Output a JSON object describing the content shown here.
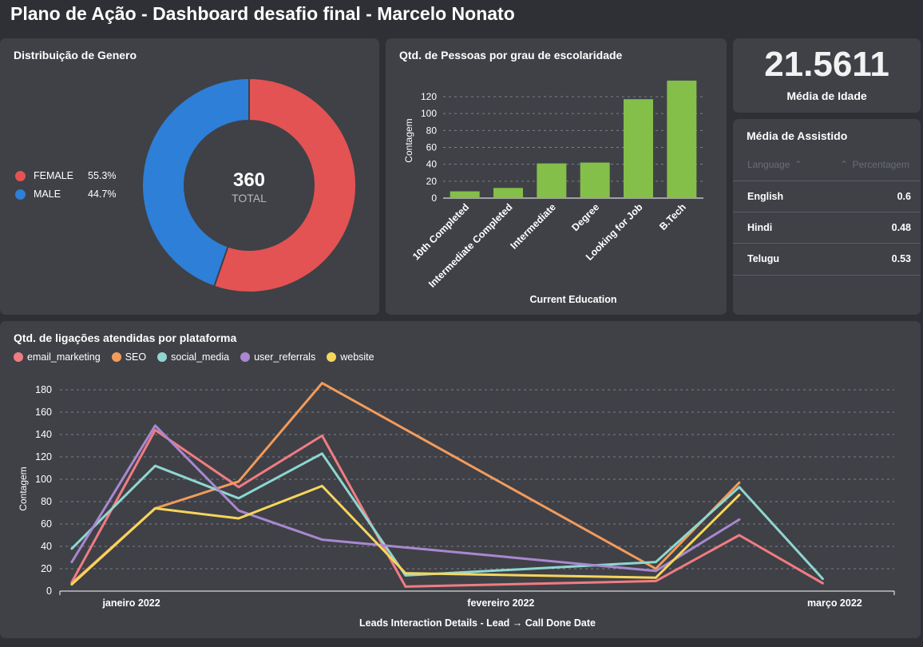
{
  "page_title": "Plano de Ação - Dashboard desafio final - Marcelo Nonato",
  "gender_card": {
    "title": "Distribuição de Genero",
    "total_value": "360",
    "total_label": "TOTAL",
    "legend": [
      {
        "label": "FEMALE",
        "pct": "55.3%",
        "color": "#e35353"
      },
      {
        "label": "MALE",
        "pct": "44.7%",
        "color": "#2d7fd8"
      }
    ]
  },
  "education_card": {
    "title": "Qtd. de Pessoas por grau de escolaridade"
  },
  "age_card": {
    "value": "21.5611",
    "label": "Média de Idade"
  },
  "watch_card": {
    "title": "Média de Assistido",
    "col_language": "Language",
    "col_percent": "Percentagem",
    "rows": [
      {
        "language": "English",
        "value": "0.6"
      },
      {
        "language": "Hindi",
        "value": "0.48"
      },
      {
        "language": "Telugu",
        "value": "0.53"
      }
    ]
  },
  "calls_card": {
    "title": "Qtd. de ligações atendidas por plataforma"
  },
  "chart_data": [
    {
      "type": "pie",
      "title": "Distribuição de Genero",
      "labels": [
        "FEMALE",
        "MALE"
      ],
      "values": [
        55.3,
        44.7
      ],
      "colors": [
        "#e35353",
        "#2d7fd8"
      ],
      "center_text": "360",
      "center_subtext": "TOTAL",
      "legend_placement": "left"
    },
    {
      "type": "bar",
      "title": "Qtd. de Pessoas por grau de escolaridade",
      "categories": [
        "10th Completed",
        "Intermediate Completed",
        "Intermediate",
        "Degree",
        "Looking for Job",
        "B.Tech"
      ],
      "values": [
        8,
        12,
        41,
        42,
        117,
        139
      ],
      "xlabel": "Current Education",
      "ylabel": "Contagem",
      "ylim": [
        0,
        140
      ],
      "yticks": [
        0,
        20,
        40,
        60,
        80,
        100,
        120
      ],
      "color": "#84bf4a",
      "grid": true
    },
    {
      "type": "line",
      "title": "Qtd. de ligações atendidas por plataforma",
      "xlabel": "Leads Interaction Details - Lead → Call Done Date",
      "ylabel": "Contagem",
      "ylim": [
        0,
        190
      ],
      "yticks": [
        0,
        20,
        40,
        60,
        80,
        100,
        120,
        140,
        160,
        180
      ],
      "x_ticks": [
        "janeiro 2022",
        "fevereiro 2022",
        "março 2022"
      ],
      "x_domain": [
        "2021-12-26",
        "2022-03-06"
      ],
      "x_tick_dates": [
        "2022-01-01",
        "2022-02-01",
        "2022-03-01"
      ],
      "legend_placement": "top-left",
      "grid": true,
      "series": [
        {
          "name": "email_marketing",
          "color": "#f07c82",
          "points": [
            [
              "2021-12-27",
              8
            ],
            [
              "2022-01-03",
              144
            ],
            [
              "2022-01-10",
              93
            ],
            [
              "2022-01-17",
              139
            ],
            [
              "2022-01-24",
              4
            ],
            [
              "2022-02-14",
              9
            ],
            [
              "2022-02-21",
              50
            ],
            [
              "2022-02-28",
              7
            ]
          ]
        },
        {
          "name": "SEO",
          "color": "#f39b5a",
          "points": [
            [
              "2021-12-27",
              7
            ],
            [
              "2022-01-03",
              74
            ],
            [
              "2022-01-10",
              98
            ],
            [
              "2022-01-17",
              186
            ],
            [
              "2022-02-14",
              20
            ],
            [
              "2022-02-21",
              97
            ]
          ]
        },
        {
          "name": "social_media",
          "color": "#8ed7d0",
          "points": [
            [
              "2021-12-27",
              38
            ],
            [
              "2022-01-03",
              112
            ],
            [
              "2022-01-10",
              83
            ],
            [
              "2022-01-17",
              123
            ],
            [
              "2022-01-24",
              14
            ],
            [
              "2022-02-14",
              26
            ],
            [
              "2022-02-21",
              93
            ],
            [
              "2022-02-28",
              11
            ]
          ]
        },
        {
          "name": "user_referrals",
          "color": "#a988d0",
          "points": [
            [
              "2021-12-27",
              26
            ],
            [
              "2022-01-03",
              148
            ],
            [
              "2022-01-10",
              72
            ],
            [
              "2022-01-17",
              46
            ],
            [
              "2022-02-14",
              18
            ],
            [
              "2022-02-21",
              64
            ]
          ]
        },
        {
          "name": "website",
          "color": "#f7d55c",
          "points": [
            [
              "2021-12-27",
              6
            ],
            [
              "2022-01-03",
              74
            ],
            [
              "2022-01-10",
              65
            ],
            [
              "2022-01-17",
              94
            ],
            [
              "2022-01-24",
              16
            ],
            [
              "2022-02-14",
              12
            ],
            [
              "2022-02-21",
              86
            ]
          ]
        }
      ]
    }
  ]
}
